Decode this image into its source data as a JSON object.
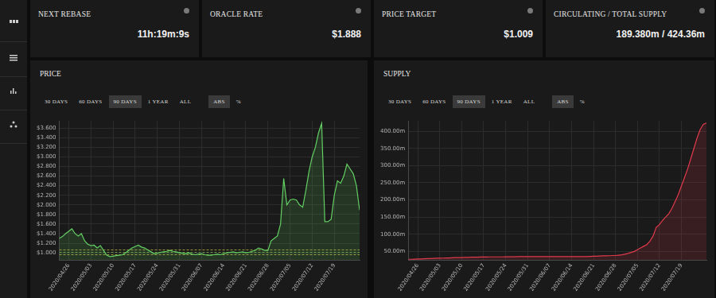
{
  "cards": [
    {
      "title": "NEXT REBASE",
      "value": "11h:19m:9s"
    },
    {
      "title": "ORACLE RATE",
      "value": "$1.888"
    },
    {
      "title": "PRICE TARGET",
      "value": "$1.009"
    },
    {
      "title": "CIRCULATING / TOTAL SUPPLY",
      "value": "189.380m / 424.36m"
    }
  ],
  "chart_data": [
    {
      "type": "line",
      "title": "PRICE",
      "controls": {
        "ranges": [
          "30 DAYS",
          "60 DAYS",
          "90 DAYS",
          "1 YEAR",
          "ALL"
        ],
        "active_range": "90 DAYS",
        "modes": [
          "ABS",
          "%"
        ],
        "active_mode": "ABS"
      },
      "categories": [
        null,
        null,
        null,
        "2020/04/26",
        null,
        null,
        null,
        null,
        null,
        null,
        "2020/05/03",
        null,
        null,
        null,
        null,
        null,
        null,
        "2020/05/10",
        null,
        null,
        null,
        null,
        null,
        null,
        "2020/05/17",
        null,
        null,
        null,
        null,
        null,
        null,
        "2020/05/24",
        null,
        null,
        null,
        null,
        null,
        null,
        "2020/05/31",
        null,
        null,
        null,
        null,
        null,
        null,
        "2020/06/07",
        null,
        null,
        null,
        null,
        null,
        null,
        "2020/06/14",
        null,
        null,
        null,
        null,
        null,
        null,
        "2020/06/21",
        null,
        null,
        null,
        null,
        null,
        null,
        "2020/06/28",
        null,
        null,
        null,
        null,
        null,
        null,
        "2020/07/05",
        null,
        null,
        null,
        null,
        null,
        null,
        "2020/07/12",
        null,
        null,
        null,
        null,
        null,
        null,
        "2020/07/19",
        null,
        null,
        null,
        null,
        null,
        null,
        null,
        null
      ],
      "values": [
        1.3,
        1.34,
        1.4,
        1.45,
        1.5,
        1.4,
        1.35,
        1.4,
        1.25,
        1.18,
        1.15,
        1.16,
        1.1,
        1.15,
        1.05,
        0.95,
        0.92,
        0.93,
        0.94,
        0.95,
        0.96,
        1.0,
        1.05,
        1.1,
        1.13,
        1.16,
        1.12,
        1.1,
        1.06,
        1.02,
        0.98,
        0.99,
        1.01,
        1.02,
        1.03,
        1.05,
        1.03,
        1.02,
        1.0,
        0.99,
        0.98,
        1.0,
        0.97,
        0.96,
        0.97,
        0.98,
        0.96,
        0.95,
        0.95,
        0.96,
        0.97,
        0.96,
        0.98,
        1.0,
        1.01,
        1.02,
        1.0,
        1.01,
        1.02,
        1.0,
        1.01,
        1.03,
        1.05,
        1.1,
        1.08,
        1.05,
        1.05,
        1.25,
        1.3,
        1.35,
        1.6,
        2.55,
        2.0,
        2.1,
        2.12,
        2.1,
        2.0,
        1.95,
        2.3,
        2.7,
        3.0,
        3.2,
        3.5,
        3.7,
        1.65,
        1.65,
        1.7,
        2.2,
        2.5,
        2.45,
        2.6,
        2.85,
        2.75,
        2.65,
        2.4,
        1.89
      ],
      "color": "#63d063",
      "ylim": [
        0.85,
        3.75
      ],
      "yticks": [
        {
          "value": 1,
          "label": "$1.000"
        },
        {
          "value": 1.2,
          "label": "$1.200"
        },
        {
          "value": 1.4,
          "label": "$1.400"
        },
        {
          "value": 1.6,
          "label": "$1.600"
        },
        {
          "value": 1.8,
          "label": "$1.800"
        },
        {
          "value": 2,
          "label": "$2.000"
        },
        {
          "value": 2.2,
          "label": "$2.200"
        },
        {
          "value": 2.4,
          "label": "$2.400"
        },
        {
          "value": 2.6,
          "label": "$2.600"
        },
        {
          "value": 2.8,
          "label": "$2.800"
        },
        {
          "value": 3,
          "label": "$3.000"
        },
        {
          "value": 3.2,
          "label": "$3.200"
        },
        {
          "value": 3.4,
          "label": "$3.400"
        },
        {
          "value": 3.6,
          "label": "$3.600"
        }
      ],
      "reference_lines": [
        {
          "value": 0.96,
          "color": "#9c9a3e"
        },
        {
          "value": 1.009,
          "color": "#6f9a4a"
        },
        {
          "value": 1.06,
          "color": "#9c9a3e"
        }
      ],
      "grid": true
    },
    {
      "type": "line",
      "title": "SUPPLY",
      "controls": {
        "ranges": [
          "30 DAYS",
          "60 DAYS",
          "90 DAYS",
          "1 YEAR",
          "ALL"
        ],
        "active_range": "90 DAYS",
        "modes": [
          "ABS",
          "%"
        ],
        "active_mode": "ABS"
      },
      "categories": [
        null,
        null,
        null,
        "2020/04/26",
        null,
        null,
        null,
        null,
        null,
        null,
        "2020/05/03",
        null,
        null,
        null,
        null,
        null,
        null,
        "2020/05/10",
        null,
        null,
        null,
        null,
        null,
        null,
        "2020/05/17",
        null,
        null,
        null,
        null,
        null,
        null,
        "2020/05/24",
        null,
        null,
        null,
        null,
        null,
        null,
        "2020/05/31",
        null,
        null,
        null,
        null,
        null,
        null,
        "2020/06/07",
        null,
        null,
        null,
        null,
        null,
        null,
        "2020/06/14",
        null,
        null,
        null,
        null,
        null,
        null,
        "2020/06/21",
        null,
        null,
        null,
        null,
        null,
        null,
        "2020/06/28",
        null,
        null,
        null,
        null,
        null,
        null,
        "2020/07/05",
        null,
        null,
        null,
        null,
        null,
        null,
        "2020/07/12",
        null,
        null,
        null,
        null,
        null,
        null,
        "2020/07/19",
        null,
        null,
        null,
        null,
        null,
        null,
        null,
        null
      ],
      "values": [
        27,
        27,
        27.5,
        28,
        28,
        28.5,
        29,
        29,
        29.5,
        30,
        30,
        30.5,
        31,
        31,
        31.5,
        32,
        32,
        32,
        32.5,
        32.5,
        33,
        33,
        33,
        33.5,
        33.5,
        33.5,
        34,
        34,
        34,
        34,
        34,
        34.5,
        34.5,
        34.5,
        34.5,
        35,
        35,
        35,
        35,
        35,
        35,
        35,
        35,
        35,
        35,
        35,
        35,
        35,
        35,
        35,
        35,
        35,
        35,
        35,
        35,
        35,
        35,
        35,
        35.5,
        36,
        36,
        36.5,
        37,
        37,
        37.5,
        38,
        38,
        39,
        40,
        42,
        44,
        47,
        50,
        55,
        60,
        65,
        70,
        80,
        95,
        120,
        128,
        140,
        150,
        160,
        175,
        195,
        215,
        240,
        265,
        290,
        320,
        350,
        380,
        405,
        420,
        424
      ],
      "color": "#e03a4c",
      "ylim": [
        25,
        430
      ],
      "yticks": [
        {
          "value": 50,
          "label": "50.00m"
        },
        {
          "value": 100,
          "label": "100.00m"
        },
        {
          "value": 150,
          "label": "150.00m"
        },
        {
          "value": 200,
          "label": "200.00m"
        },
        {
          "value": 250,
          "label": "250.00m"
        },
        {
          "value": 300,
          "label": "300.00m"
        },
        {
          "value": 350,
          "label": "350.00m"
        },
        {
          "value": 400,
          "label": "400.00m"
        }
      ],
      "grid": true
    }
  ]
}
